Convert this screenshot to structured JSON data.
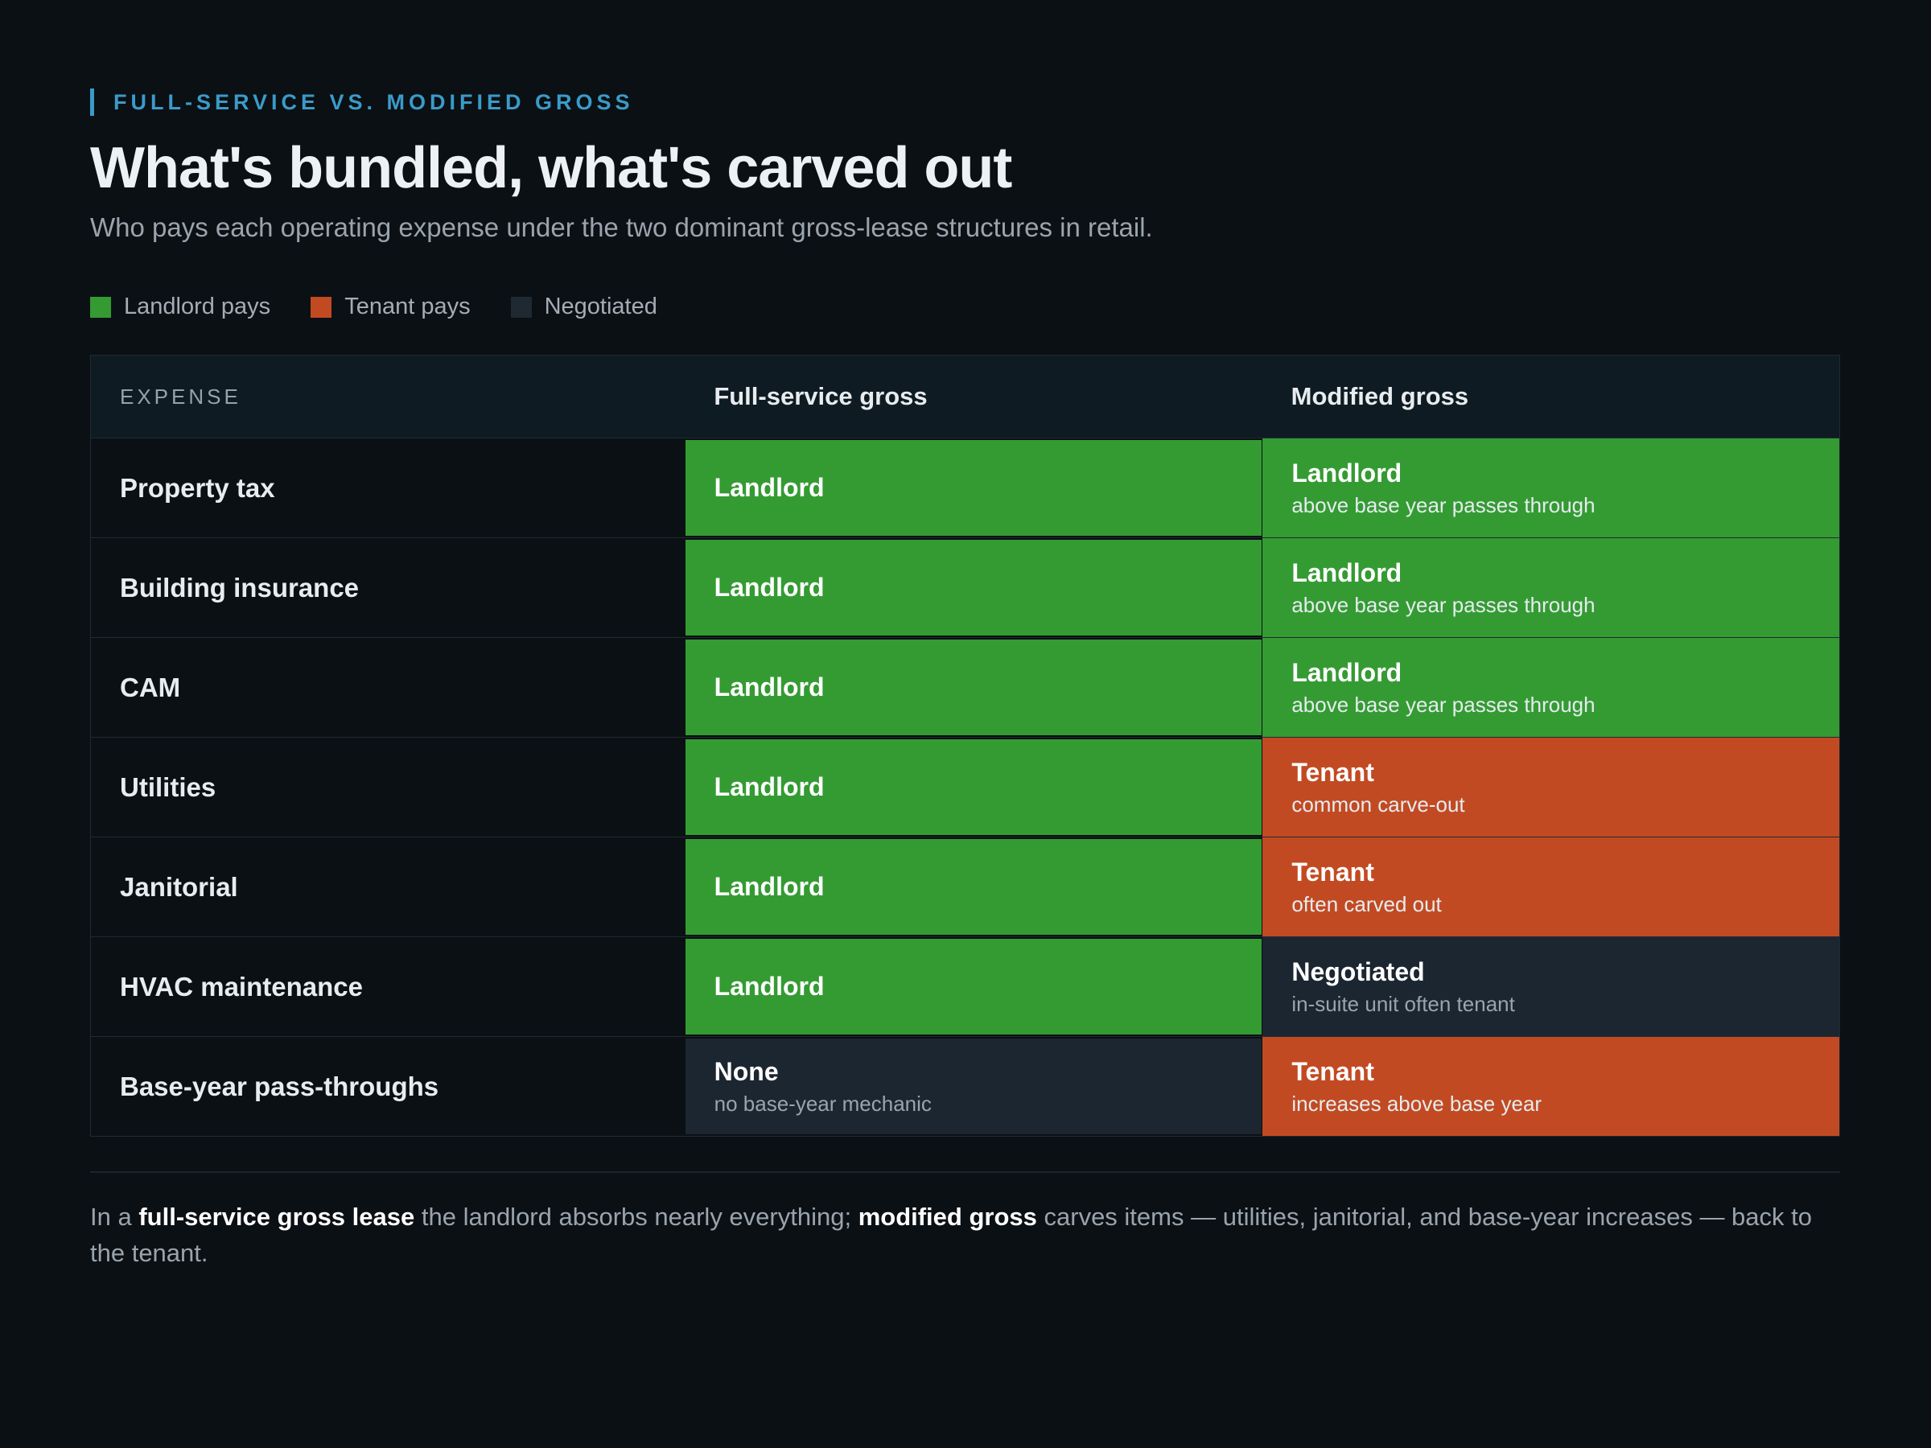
{
  "header": {
    "eyebrow": "FULL-SERVICE VS. MODIFIED GROSS",
    "title": "What's bundled, what's carved out",
    "subtitle": "Who pays each operating expense under the two dominant gross-lease structures in retail."
  },
  "legend": [
    {
      "label": "Landlord pays",
      "color": "#349b33"
    },
    {
      "label": "Tenant pays",
      "color": "#c24a22"
    },
    {
      "label": "Negotiated",
      "color": "#1c2630"
    }
  ],
  "table": {
    "columns": [
      "EXPENSE",
      "Full-service gross",
      "Modified gross"
    ],
    "rows": [
      {
        "expense": "Property tax",
        "cells": [
          {
            "label": "Landlord",
            "color": "#349b33"
          },
          {
            "label": "Landlord",
            "note": "above base year passes through",
            "color": "#349b33"
          }
        ]
      },
      {
        "expense": "Building insurance",
        "cells": [
          {
            "label": "Landlord",
            "color": "#349b33"
          },
          {
            "label": "Landlord",
            "note": "above base year passes through",
            "color": "#349b33"
          }
        ]
      },
      {
        "expense": "CAM",
        "cells": [
          {
            "label": "Landlord",
            "color": "#349b33"
          },
          {
            "label": "Landlord",
            "note": "above base year passes through",
            "color": "#349b33"
          }
        ]
      },
      {
        "expense": "Utilities",
        "cells": [
          {
            "label": "Landlord",
            "color": "#349b33"
          },
          {
            "label": "Tenant",
            "note": "common carve-out",
            "color": "#c24a22"
          }
        ]
      },
      {
        "expense": "Janitorial",
        "cells": [
          {
            "label": "Landlord",
            "color": "#349b33"
          },
          {
            "label": "Tenant",
            "note": "often carved out",
            "color": "#c24a22"
          }
        ]
      },
      {
        "expense": "HVAC maintenance",
        "cells": [
          {
            "label": "Landlord",
            "color": "#349b33"
          },
          {
            "label": "Negotiated",
            "note": "in-suite unit often tenant",
            "color": "#1c2630"
          }
        ]
      },
      {
        "expense": "Base-year pass-throughs",
        "cells": [
          {
            "label": "None",
            "note": "no base-year mechanic",
            "color": "#1c2630"
          },
          {
            "label": "Tenant",
            "note": "increases above base year",
            "color": "#c24a22"
          }
        ]
      }
    ]
  },
  "footnote": [
    {
      "text": "In a "
    },
    {
      "text": "full-service gross lease",
      "bold": true
    },
    {
      "text": " the landlord absorbs nearly everything; "
    },
    {
      "text": "modified gross",
      "bold": true
    },
    {
      "text": " carves items — utilities, janitorial, and base-year increases — back to the tenant."
    }
  ]
}
